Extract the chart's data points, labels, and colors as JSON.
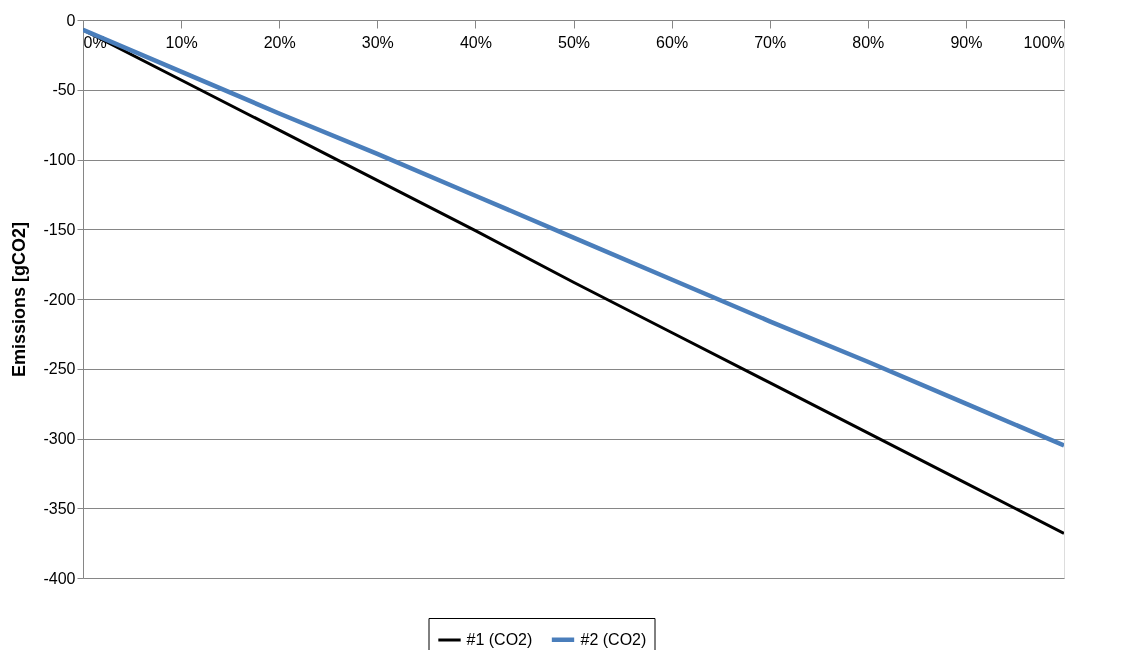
{
  "chart_data": {
    "type": "line",
    "ylabel": "Emissions [gCO2]",
    "x": [
      0,
      10,
      20,
      30,
      40,
      50,
      60,
      70,
      80,
      90,
      100
    ],
    "series": [
      {
        "name": "#1 (CO2)",
        "color": "#000000",
        "values": [
          -7,
          -43,
          -79,
          -115,
          -151,
          -188,
          -224,
          -260,
          -296,
          -332,
          -368
        ]
      },
      {
        "name": "#2 (CO2)",
        "color": "#4a7ebb",
        "values": [
          -7,
          -37,
          -67,
          -96,
          -126,
          -156,
          -186,
          -216,
          -245,
          -275,
          -305
        ]
      }
    ],
    "xlim": [
      0,
      100
    ],
    "xticks": [
      {
        "value": 0,
        "label": "0%"
      },
      {
        "value": 10,
        "label": "10%"
      },
      {
        "value": 20,
        "label": "20%"
      },
      {
        "value": 30,
        "label": "30%"
      },
      {
        "value": 40,
        "label": "40%"
      },
      {
        "value": 50,
        "label": "50%"
      },
      {
        "value": 60,
        "label": "60%"
      },
      {
        "value": 70,
        "label": "70%"
      },
      {
        "value": 80,
        "label": "80%"
      },
      {
        "value": 90,
        "label": "90%"
      },
      {
        "value": 100,
        "label": "100%"
      }
    ],
    "ylim": [
      -400,
      0
    ],
    "yticks": [
      0,
      -50,
      -100,
      -150,
      -200,
      -250,
      -300,
      -350,
      -400
    ],
    "grid": "y",
    "legend": "bottom",
    "marker": "none",
    "line_style": "solid"
  }
}
